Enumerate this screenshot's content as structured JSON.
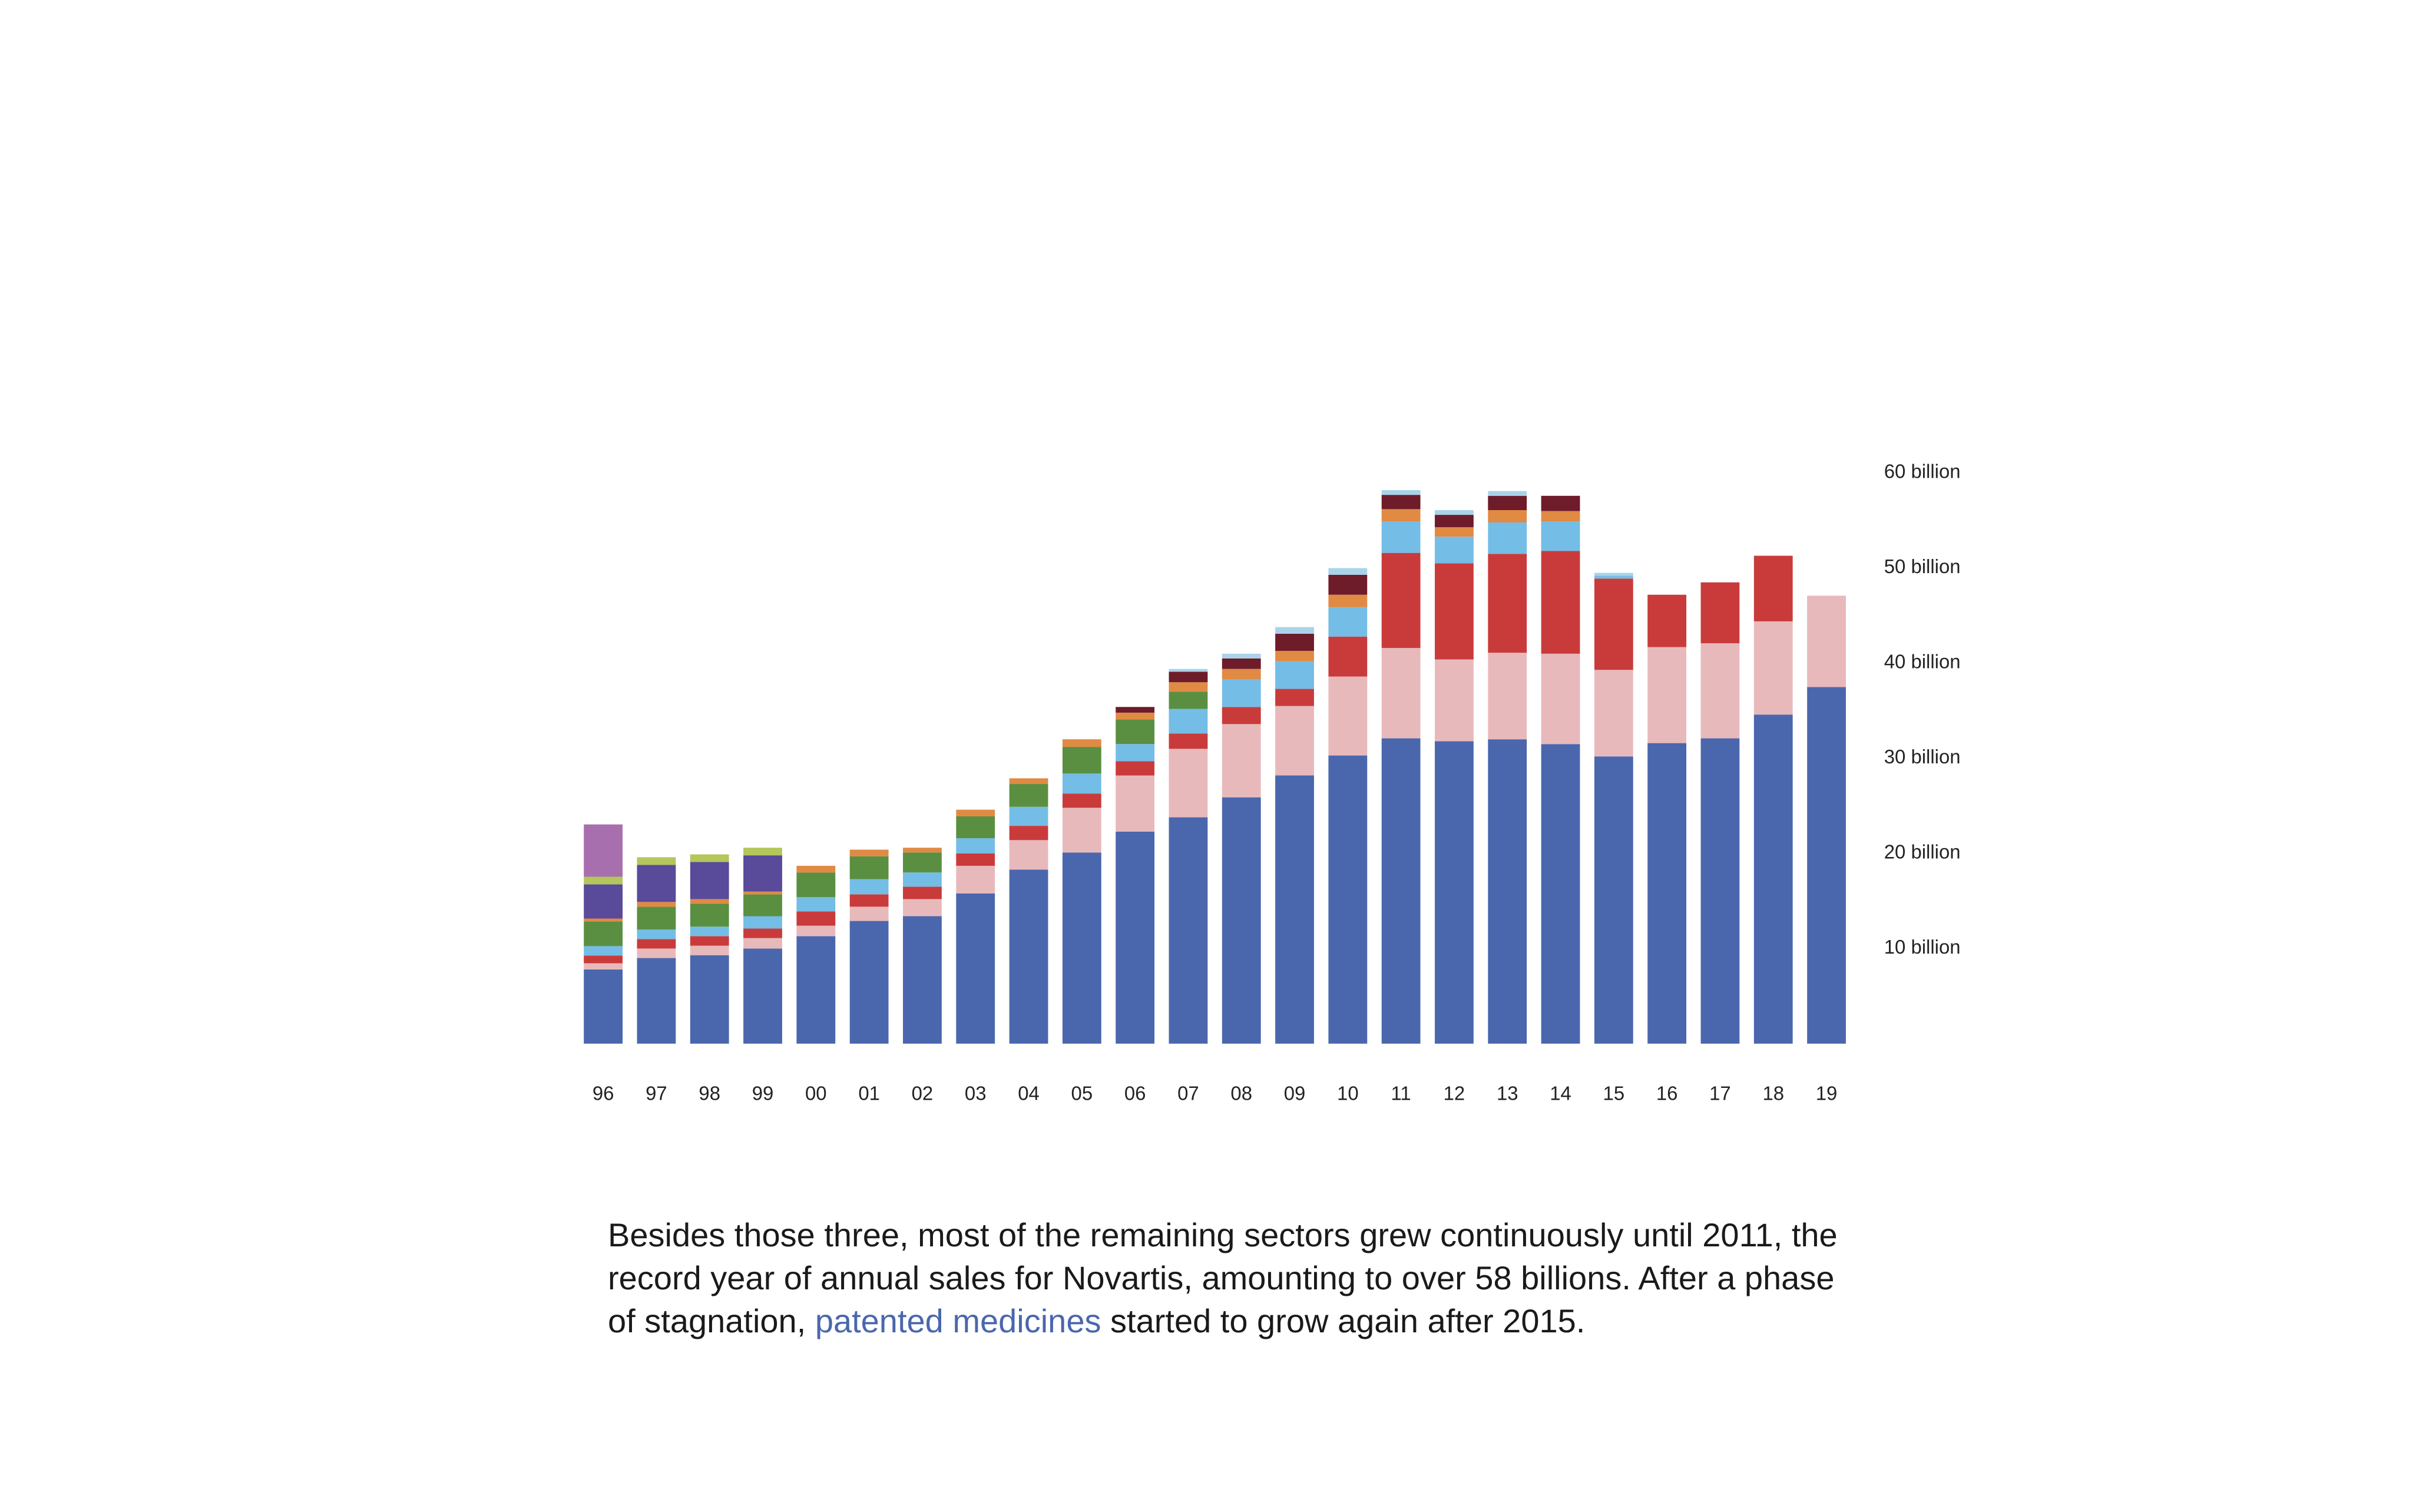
{
  "chart_data": {
    "type": "stacked_bar",
    "categories": [
      "96",
      "97",
      "98",
      "99",
      "00",
      "01",
      "02",
      "03",
      "04",
      "05",
      "06",
      "07",
      "08",
      "09",
      "10",
      "11",
      "12",
      "13",
      "14",
      "15",
      "16",
      "17",
      "18",
      "19"
    ],
    "series": [
      {
        "color": "#4a67ae",
        "values": [
          7.8,
          9.0,
          9.3,
          10.0,
          11.3,
          12.9,
          13.4,
          15.8,
          18.3,
          20.1,
          22.3,
          23.8,
          25.9,
          28.2,
          30.3,
          32.1,
          31.8,
          32.0,
          31.5,
          30.2,
          31.6,
          32.1,
          34.6,
          37.5
        ]
      },
      {
        "color": "#e8b9bb",
        "values": [
          0.65,
          1.0,
          1.0,
          1.1,
          1.1,
          1.5,
          1.8,
          2.9,
          3.1,
          4.7,
          5.9,
          7.2,
          7.7,
          7.3,
          8.3,
          9.5,
          8.6,
          9.1,
          9.5,
          9.1,
          10.1,
          10.0,
          9.8,
          9.6
        ]
      },
      {
        "color": "#c93b3b",
        "values": [
          0.8,
          1.0,
          1.0,
          1.0,
          1.5,
          1.3,
          1.3,
          1.3,
          1.5,
          1.5,
          1.5,
          1.6,
          1.8,
          1.8,
          4.2,
          10.0,
          10.1,
          10.4,
          10.8,
          9.6,
          5.5,
          6.4,
          6.9,
          null
        ]
      },
      {
        "color": "#74bde6",
        "values": [
          1.0,
          1.0,
          1.0,
          1.3,
          1.5,
          1.6,
          1.5,
          1.6,
          2.0,
          2.1,
          1.8,
          2.6,
          2.9,
          2.9,
          3.1,
          3.3,
          2.8,
          3.3,
          3.1,
          0.3,
          null,
          null,
          null,
          null
        ]
      },
      {
        "color": "#5a8f41",
        "values": [
          2.6,
          2.4,
          2.4,
          2.3,
          2.6,
          2.4,
          2.1,
          2.3,
          2.4,
          2.8,
          2.6,
          1.8,
          null,
          null,
          null,
          null,
          null,
          null,
          null,
          null,
          null,
          null,
          null,
          null
        ]
      },
      {
        "color": "#e08a44",
        "values": [
          0.3,
          0.5,
          0.5,
          0.3,
          0.7,
          0.7,
          0.5,
          0.7,
          0.6,
          0.8,
          0.7,
          1.0,
          1.1,
          1.1,
          1.3,
          1.3,
          1.0,
          1.3,
          1.1,
          null,
          null,
          null,
          null,
          null
        ]
      },
      {
        "color": "#6e1b2a",
        "values": [
          null,
          null,
          null,
          null,
          null,
          null,
          null,
          null,
          null,
          null,
          0.6,
          1.1,
          1.1,
          1.8,
          2.1,
          1.5,
          1.3,
          1.5,
          1.6,
          null,
          null,
          null,
          null,
          null
        ]
      },
      {
        "color": "#a9d3ea",
        "values": [
          null,
          null,
          null,
          null,
          null,
          null,
          null,
          null,
          null,
          null,
          null,
          0.3,
          0.5,
          0.7,
          0.7,
          0.5,
          0.5,
          0.5,
          null,
          0.3,
          null,
          null,
          null,
          null
        ]
      },
      {
        "color": "#5a4a9a",
        "values": [
          3.6,
          3.9,
          3.9,
          3.8,
          null,
          null,
          null,
          null,
          null,
          null,
          null,
          null,
          null,
          null,
          null,
          null,
          null,
          null,
          null,
          null,
          null,
          null,
          null,
          null
        ]
      },
      {
        "color": "#b3c75a",
        "values": [
          0.8,
          0.8,
          0.8,
          0.8,
          null,
          null,
          null,
          null,
          null,
          null,
          null,
          null,
          null,
          null,
          null,
          null,
          null,
          null,
          null,
          null,
          null,
          null,
          null,
          null
        ]
      },
      {
        "color": "#a86fae",
        "values": [
          5.5,
          null,
          null,
          null,
          null,
          null,
          null,
          null,
          null,
          null,
          null,
          null,
          null,
          null,
          null,
          null,
          null,
          null,
          null,
          null,
          null,
          null,
          null,
          null
        ]
      }
    ],
    "ylim": [
      0,
      60
    ],
    "yticks": [
      {
        "value": 10,
        "label": "10 billion"
      },
      {
        "value": 20,
        "label": "20 billion"
      },
      {
        "value": 30,
        "label": "30 billion"
      },
      {
        "value": 40,
        "label": "40 billion"
      },
      {
        "value": 50,
        "label": "50 billion"
      },
      {
        "value": 60,
        "label": "60 billion"
      }
    ]
  },
  "text": {
    "before": "Besides those three, most of the remaining sectors grew continuously until 2011, the record year of annual sales for Novartis, amounting to over 58 billions. After a phase of stagnation, ",
    "highlight": "patented medicines",
    "highlight_color": "#4a67ae",
    "after": " started to grow again after 2015."
  }
}
